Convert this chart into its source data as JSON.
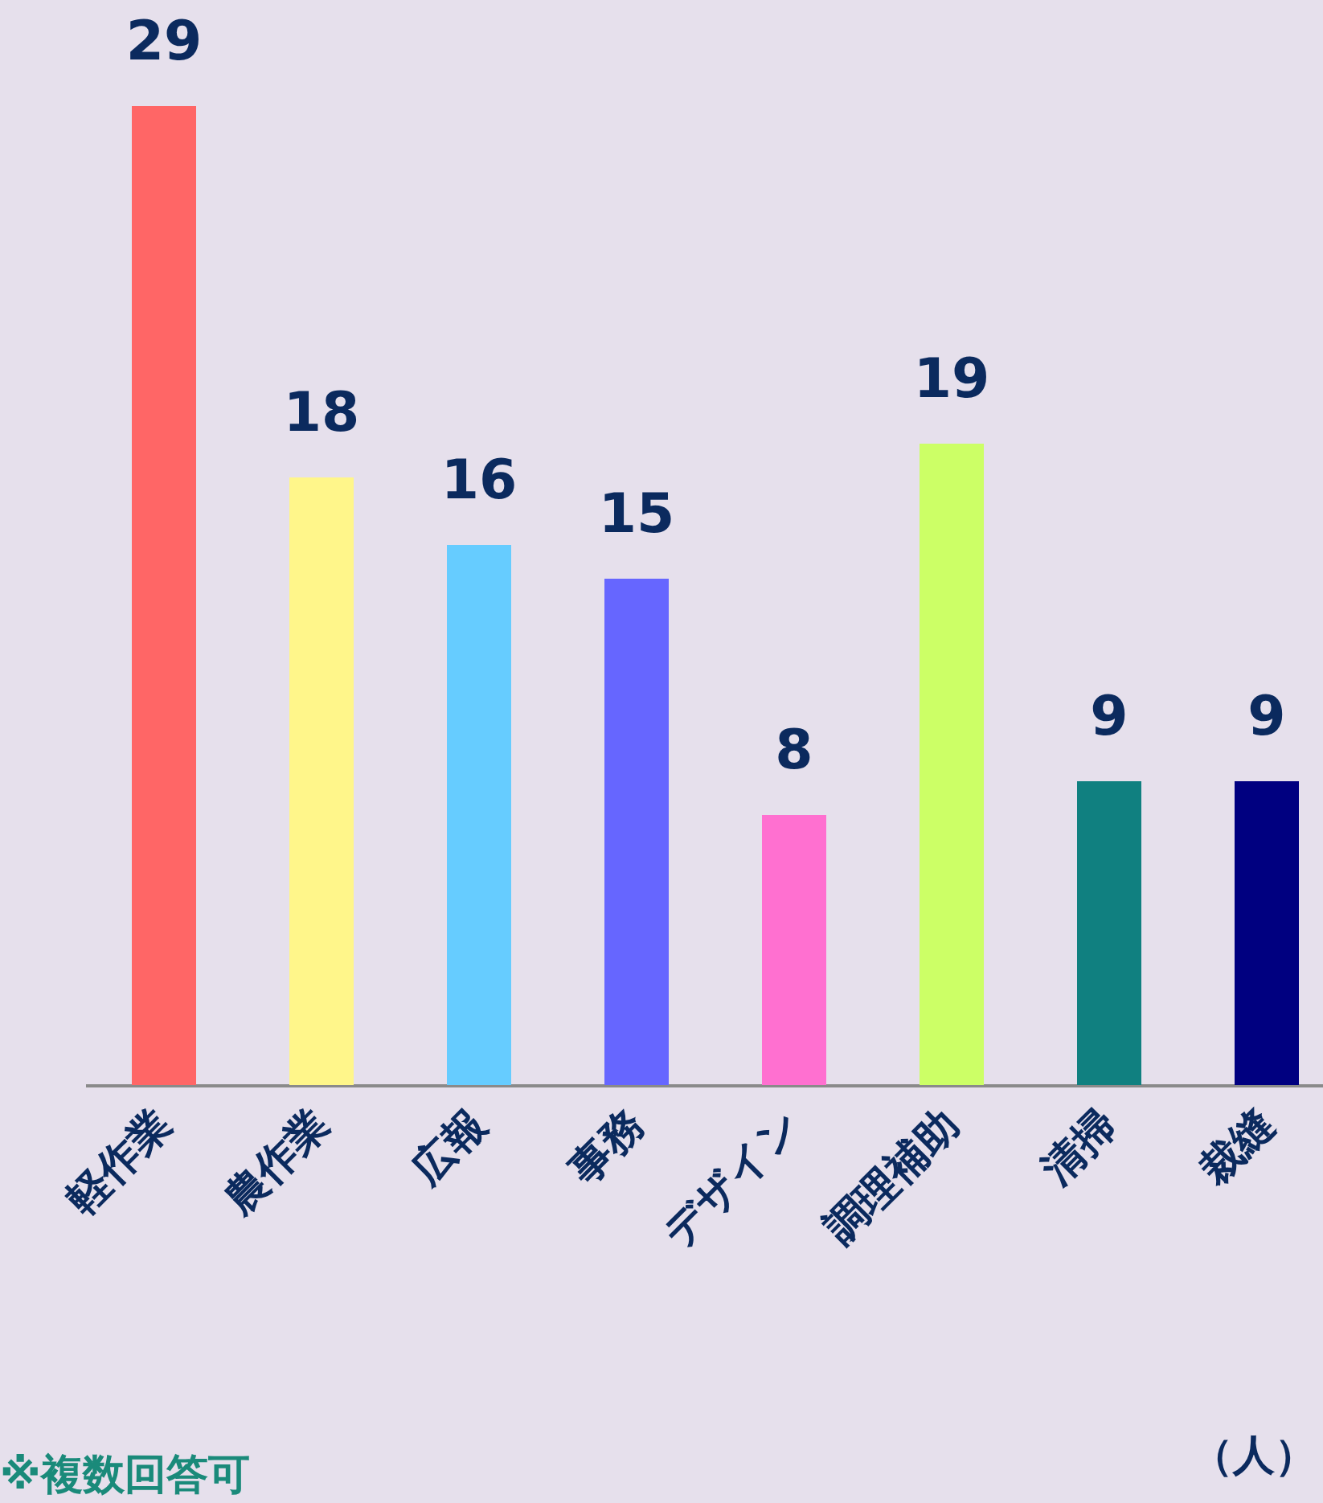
{
  "chart_data": {
    "type": "bar",
    "categories": [
      "軽作業",
      "農作業",
      "広報",
      "事務",
      "デザイン",
      "調理補助",
      "清掃",
      "裁縫"
    ],
    "values": [
      29,
      18,
      16,
      15,
      8,
      19,
      9,
      9
    ],
    "colors": [
      "#ff6666",
      "#fff68a",
      "#66ccff",
      "#6666ff",
      "#ff70d0",
      "#ccff66",
      "#108080",
      "#000080"
    ],
    "data_labels": true,
    "annotations": [
      "※複数回答可",
      "（人）"
    ]
  }
}
